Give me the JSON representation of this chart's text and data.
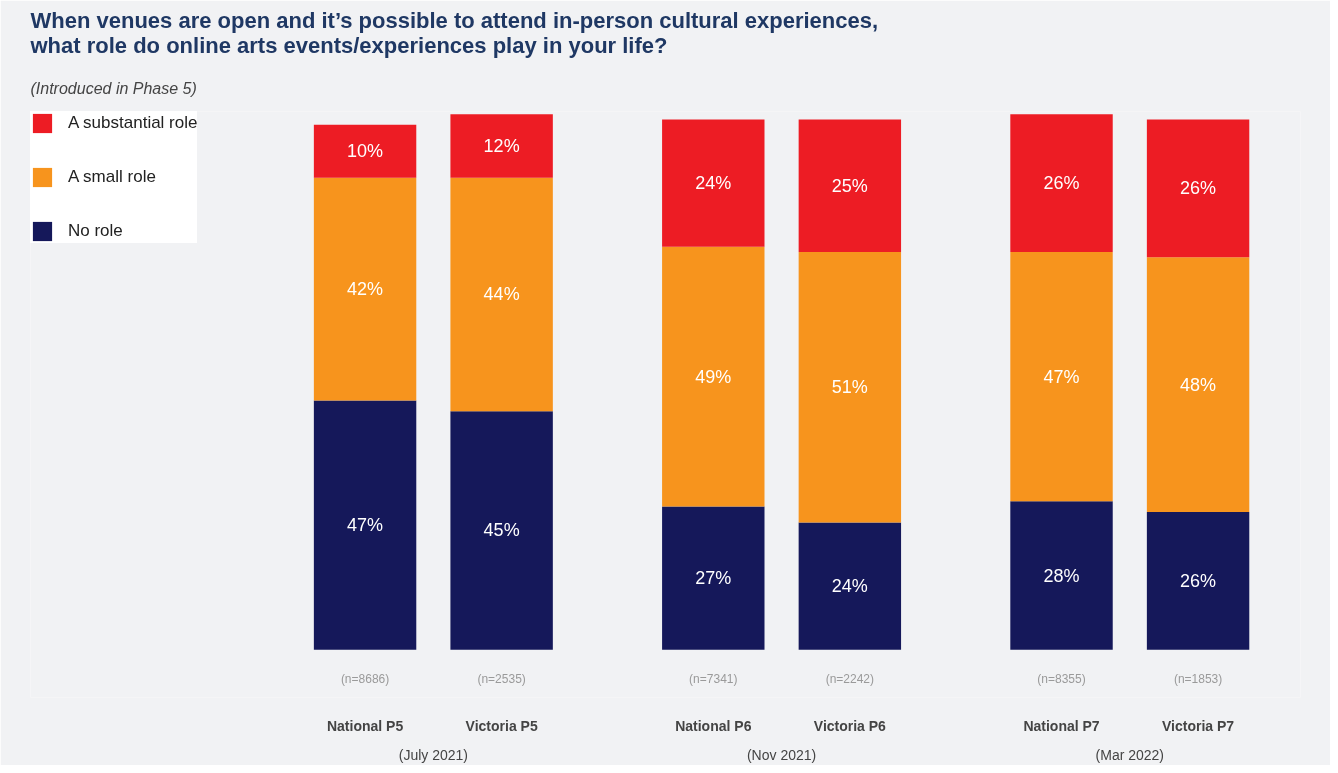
{
  "chart_data": {
    "type": "bar",
    "stacked": true,
    "legend": "top left",
    "grid": false,
    "title": "When venues are open and it’s possible to attend in-person cultural experiences,\nwhat role do online arts events/experiences play in your life?",
    "subtitle": "(Introduced in Phase 5)",
    "categories": [
      "National P5",
      "Victoria P5",
      "National P6",
      "Victoria P6",
      "National P7",
      "Victoria P7"
    ],
    "series": [
      {
        "name": "No role",
        "color": "#15185a",
        "values": [
          47,
          45,
          27,
          24,
          28,
          26
        ],
        "value_labels": [
          "47%",
          "45%",
          "27%",
          "24%",
          "28%",
          "26%"
        ]
      },
      {
        "name": "A small role",
        "color": "#f7941d",
        "values": [
          42,
          44,
          49,
          51,
          47,
          48
        ],
        "value_labels": [
          "42%",
          "44%",
          "49%",
          "51%",
          "47%",
          "48%"
        ]
      },
      {
        "name": "A substantial role",
        "color": "#ed1c24",
        "values": [
          10,
          12,
          24,
          25,
          26,
          26
        ],
        "value_labels": [
          "10%",
          "12%",
          "24%",
          "25%",
          "26%",
          "26%"
        ]
      }
    ],
    "annotations": [
      "(n=8686)",
      "(n=2535)",
      "(n=7341)",
      "(n=2242)",
      "(n=8355)",
      "(n=1853)",
      "(July 2021)",
      "(Nov 2021)",
      "(Mar 2022)"
    ]
  }
}
